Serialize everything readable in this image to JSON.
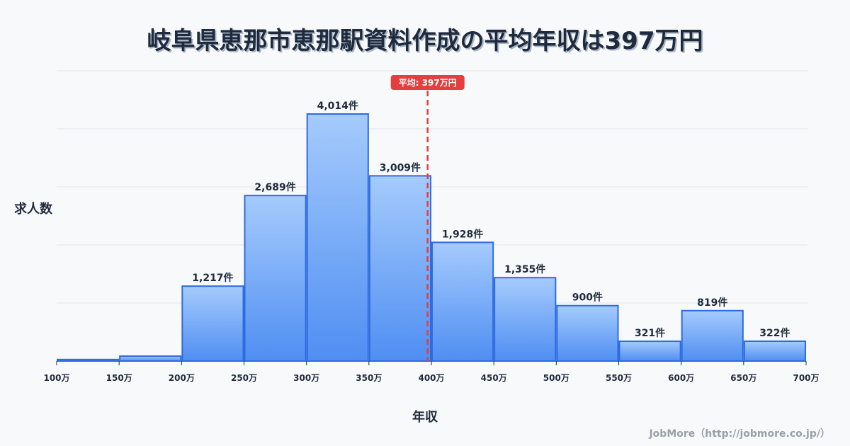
{
  "title": "岐阜県恵那市恵那駅資料作成の平均年収は397万円",
  "y_axis_label": "求人数",
  "x_axis_label": "年収",
  "credit": "JobMore（http://jobmore.co.jp/）",
  "average": {
    "label": "平均: 397万円",
    "value": 397,
    "color": "#e53e3e"
  },
  "colors": {
    "bar_top": "#a5cbfc",
    "bar_bottom": "#4f8ef2",
    "bar_border": "#2f6be0",
    "grid": "#e2e5ea",
    "text": "#1f2a3c"
  },
  "chart_data": {
    "type": "bar",
    "title": "岐阜県恵那市恵那駅資料作成の平均年収は397万円",
    "xlabel": "年収",
    "ylabel": "求人数",
    "categories": [
      "100-150万",
      "150-200万",
      "200-250万",
      "250-300万",
      "300-350万",
      "350-400万",
      "400-450万",
      "450-500万",
      "500-550万",
      "550-600万",
      "600-650万",
      "650-700万"
    ],
    "values": [
      25,
      80,
      1217,
      2689,
      4014,
      3009,
      1928,
      1355,
      900,
      321,
      819,
      322
    ],
    "labels": [
      "",
      "",
      "1,217件",
      "2,689件",
      "4,014件",
      "3,009件",
      "1,928件",
      "1,355件",
      "900件",
      "321件",
      "819件",
      "322件"
    ],
    "x_ticks": [
      "100万",
      "150万",
      "200万",
      "250万",
      "300万",
      "350万",
      "400万",
      "450万",
      "500万",
      "550万",
      "600万",
      "650万",
      "700万"
    ],
    "average_line": 397,
    "grid": true,
    "legend": "none"
  }
}
